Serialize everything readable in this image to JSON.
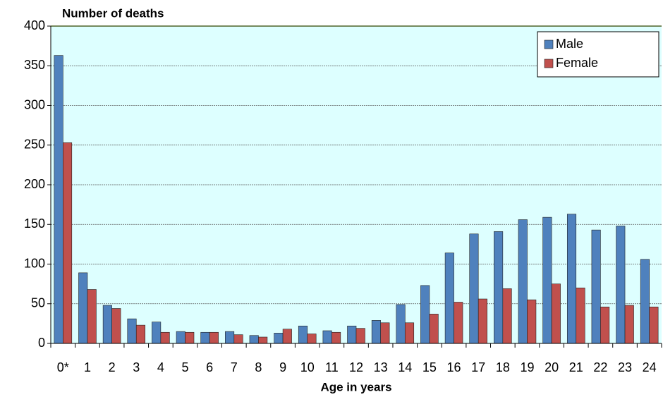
{
  "chart_data": {
    "type": "bar",
    "title": "Number of deaths",
    "x_label": "Age in years",
    "categories": [
      "0*",
      "1",
      "2",
      "3",
      "4",
      "5",
      "6",
      "7",
      "8",
      "9",
      "10",
      "11",
      "12",
      "13",
      "14",
      "15",
      "16",
      "17",
      "18",
      "19",
      "20",
      "21",
      "22",
      "23",
      "24"
    ],
    "series": [
      {
        "name": "Male",
        "color": "#4f81bd",
        "values": [
          363,
          89,
          48,
          31,
          27,
          15,
          14,
          15,
          10,
          13,
          22,
          16,
          22,
          29,
          49,
          73,
          114,
          138,
          141,
          156,
          159,
          163,
          143,
          148,
          106
        ]
      },
      {
        "name": "Female",
        "color": "#c0504d",
        "values": [
          253,
          68,
          44,
          23,
          14,
          14,
          14,
          11,
          8,
          18,
          12,
          14,
          19,
          26,
          26,
          37,
          52,
          56,
          69,
          55,
          75,
          70,
          46,
          48,
          46
        ]
      }
    ],
    "ylim": [
      0,
      400
    ],
    "yticks": [
      0,
      50,
      100,
      150,
      200,
      250,
      300,
      350,
      400
    ],
    "grid": true,
    "legend": "top-right",
    "background": "#ddffff"
  }
}
